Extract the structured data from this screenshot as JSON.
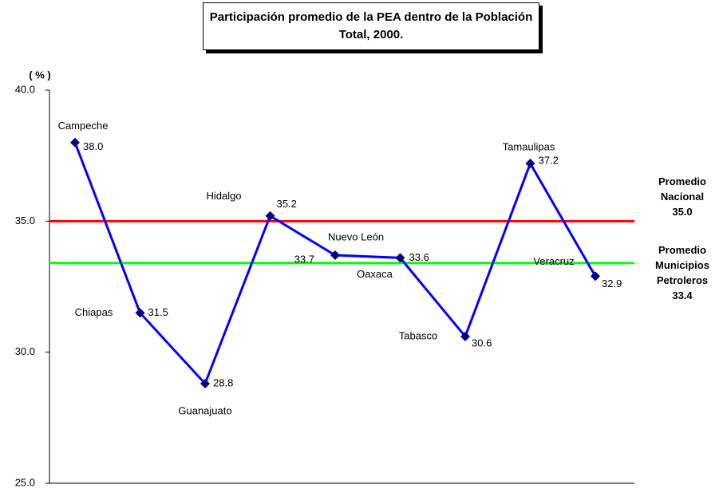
{
  "chart_data": {
    "type": "line",
    "title": "Participación promedio de la PEA dentro de la Población Total, 2000.",
    "y_label": "( % )",
    "categories": [
      "Campeche",
      "Chiapas",
      "Guanajuato",
      "Hidalgo",
      "Nuevo León",
      "Oaxaca",
      "Tabasco",
      "Tamaulipas",
      "Veracruz"
    ],
    "series": [
      {
        "name": "PEA",
        "color": "#0000ff",
        "marker_color": "#000080",
        "values": [
          38.0,
          31.5,
          28.8,
          35.2,
          33.7,
          33.6,
          30.6,
          37.2,
          32.9
        ],
        "value_labels": [
          "38.0",
          "31.5",
          "28.8",
          "35.2",
          "33.7",
          "33.6",
          "30.6",
          "37.2",
          "32.9"
        ]
      }
    ],
    "reference_lines": [
      {
        "name": "Promedio Nacional",
        "value": 35.0,
        "value_label": "35.0",
        "color": "#ff0000"
      },
      {
        "name": "Promedio Municipios Petroleros",
        "value": 33.4,
        "value_label": "33.4",
        "color": "#00ff00"
      }
    ],
    "ylim": [
      25,
      40
    ],
    "yticks": [
      {
        "value": 25,
        "label": "25.0"
      },
      {
        "value": 30,
        "label": "30.0"
      },
      {
        "value": 35,
        "label": "35.0"
      },
      {
        "value": 40,
        "label": "40.0"
      }
    ],
    "grid": false
  }
}
